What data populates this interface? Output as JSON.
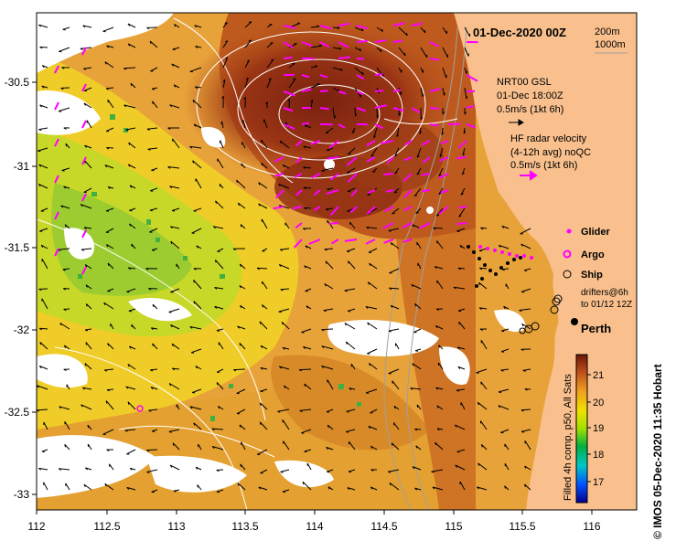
{
  "map": {
    "title": "01-Dec-2020 00Z",
    "depth_legend": [
      "200m",
      "1000m"
    ],
    "gsl": {
      "lines": [
        "NRT00 GSL",
        "01-Dec 18:00Z",
        "0.5m/s (1kt 6h)"
      ]
    },
    "hf_radar": {
      "lines": [
        "HF radar velocity",
        "(4-12h avg) noQC",
        "0.5m/s (1kt 6h)"
      ]
    },
    "legend": {
      "glider": "Glider",
      "argo": "Argo",
      "ship": "Ship",
      "drifters": [
        "drifters@6h",
        "to 01/12 12Z"
      ]
    },
    "city": "Perth",
    "x_ticks": [
      "112",
      "112.5",
      "113",
      "113.5",
      "114",
      "114.5",
      "115",
      "115.5",
      "116"
    ],
    "y_ticks": [
      "-30.5",
      "-31",
      "-31.5",
      "-32",
      "-32.5",
      "-33"
    ],
    "colorbar": {
      "ticks": [
        "21",
        "20",
        "19",
        "18",
        "17"
      ],
      "label": "Filled 4h comp, p50, All Sats"
    },
    "credit": "© IMOS 05-Dec-2020 11:35 Hobart",
    "colors": {
      "land": "#f9c08e",
      "ocean_warm": "#c8661e",
      "ocean_hot": "#8a2a12",
      "ocean_cool": "#f0c020",
      "cloud": "#ffffff",
      "radar_arrow": "#ff00ff",
      "current_arrow": "#000000"
    }
  }
}
